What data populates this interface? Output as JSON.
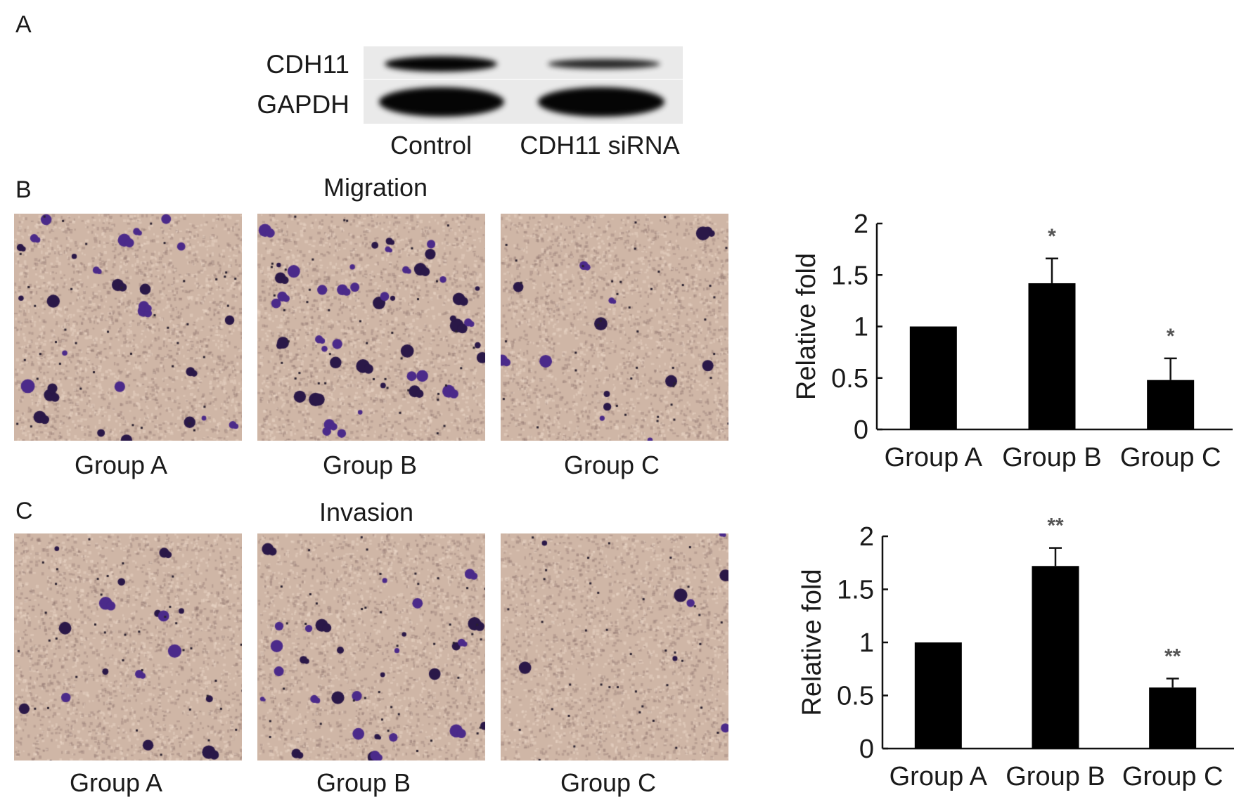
{
  "panel_labels": {
    "a": "A",
    "b": "B",
    "c": "C"
  },
  "western_blot": {
    "rows": [
      "CDH11",
      "GAPDH"
    ],
    "lanes": [
      "Control",
      "CDH11 siRNA"
    ]
  },
  "migration": {
    "title": "Migration",
    "images": [
      "Group A",
      "Group B",
      "Group C"
    ]
  },
  "invasion": {
    "title": "Invasion",
    "images": [
      "Group A",
      "Group B",
      "Group C"
    ]
  },
  "colors": {
    "bar": "#000000",
    "stain": "#4b2a8a",
    "membrane": "#cfb6a6"
  },
  "chart_data": [
    {
      "type": "bar",
      "panel": "B",
      "categories": [
        "Group A",
        "Group B",
        "Group C"
      ],
      "values": [
        1.0,
        1.42,
        0.48
      ],
      "error_upper": [
        0,
        0.24,
        0.21
      ],
      "significance": [
        "",
        "*",
        "*"
      ],
      "xlabel": "",
      "ylabel": "Relative fold",
      "ylim": [
        0,
        2
      ],
      "yticks": [
        "0",
        "0.5",
        "1",
        "1.5",
        "2"
      ],
      "grid": false
    },
    {
      "type": "bar",
      "panel": "C",
      "categories": [
        "Group A",
        "Group B",
        "Group C"
      ],
      "values": [
        1.0,
        1.72,
        0.575
      ],
      "error_upper": [
        0,
        0.17,
        0.085
      ],
      "significance": [
        "",
        "**",
        "**"
      ],
      "xlabel": "",
      "ylabel": "Relative fold",
      "ylim": [
        0,
        2
      ],
      "yticks": [
        "0",
        "0.5",
        "1",
        "1.5",
        "2"
      ],
      "grid": false
    }
  ]
}
